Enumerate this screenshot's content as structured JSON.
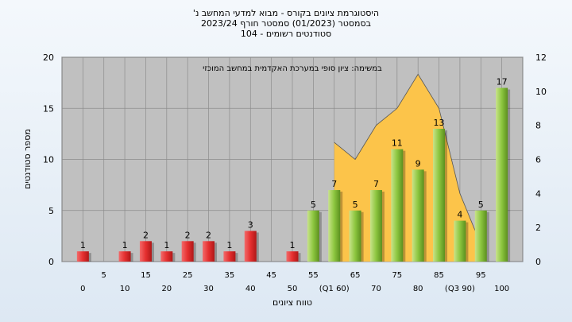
{
  "title": {
    "line1": "היסטוגרמת ציונים בקורס - מבוא למדעי המחשב נ'",
    "line2": "בסמסטר (01/2023) סמסטר חורף 2023/24",
    "line3": "סטודנטים רשומים - 104"
  },
  "chart_data": {
    "type": "bar",
    "inner_title": "במשימה: ציון סופי במערכת האקדמית במחשב המוכזי",
    "xlabel": "טווח ציונים",
    "ylabel": "מספר סטודנטים",
    "ylim": [
      0,
      20
    ],
    "y2lim": [
      0,
      12
    ],
    "y_ticks": [
      0,
      5,
      10,
      15,
      20
    ],
    "y2_ticks": [
      0,
      2,
      4,
      6,
      8,
      10,
      12
    ],
    "grid": true,
    "categories_lower": [
      "0",
      "10",
      "20",
      "30",
      "40",
      "50",
      "(Q1 60)",
      "70",
      "80",
      "(Q3 90)",
      "100"
    ],
    "categories_upper": [
      "5",
      "15",
      "25",
      "35",
      "45",
      "55",
      "65",
      "75",
      "85",
      "95"
    ],
    "bars": [
      {
        "x": 0,
        "value": 1,
        "label": "1",
        "color": "#e83a3a"
      },
      {
        "x": 10,
        "value": 1,
        "label": "1",
        "color": "#e83a3a"
      },
      {
        "x": 15,
        "value": 2,
        "label": "2",
        "color": "#e83a3a"
      },
      {
        "x": 20,
        "value": 1,
        "label": "1",
        "color": "#e83a3a"
      },
      {
        "x": 25,
        "value": 2,
        "label": "2",
        "color": "#e83a3a"
      },
      {
        "x": 30,
        "value": 2,
        "label": "2",
        "color": "#e83a3a"
      },
      {
        "x": 35,
        "value": 1,
        "label": "1",
        "color": "#e83a3a"
      },
      {
        "x": 40,
        "value": 3,
        "label": "3",
        "color": "#e83a3a"
      },
      {
        "x": 50,
        "value": 1,
        "label": "1",
        "color": "#e83a3a"
      },
      {
        "x": 55,
        "value": 5,
        "label": "5",
        "color": "#8cc63f"
      },
      {
        "x": 60,
        "value": 7,
        "label": "7",
        "color": "#8cc63f"
      },
      {
        "x": 65,
        "value": 5,
        "label": "5",
        "color": "#8cc63f"
      },
      {
        "x": 70,
        "value": 7,
        "label": "7",
        "color": "#8cc63f"
      },
      {
        "x": 75,
        "value": 11,
        "label": "11",
        "color": "#8cc63f"
      },
      {
        "x": 80,
        "value": 9,
        "label": "9",
        "color": "#8cc63f"
      },
      {
        "x": 85,
        "value": 13,
        "label": "13",
        "color": "#8cc63f"
      },
      {
        "x": 90,
        "value": 4,
        "label": "4",
        "color": "#8cc63f"
      },
      {
        "x": 95,
        "value": 5,
        "label": "5",
        "color": "#8cc63f"
      },
      {
        "x": 100,
        "value": 17,
        "label": "17",
        "color": "#8cc63f"
      }
    ],
    "area_series": {
      "axis": "right",
      "color": "#fcc44a",
      "points": [
        {
          "x": 60,
          "y": 7
        },
        {
          "x": 65,
          "y": 6
        },
        {
          "x": 70,
          "y": 8
        },
        {
          "x": 75,
          "y": 9
        },
        {
          "x": 80,
          "y": 11
        },
        {
          "x": 85,
          "y": 9
        },
        {
          "x": 90,
          "y": 4
        },
        {
          "x": 95,
          "y": 1
        }
      ]
    },
    "colors": {
      "plot_bg": "#c0c0c0",
      "grid": "#8c8c8c",
      "fail_bar": "#e83a3a",
      "pass_bar": "#8cc63f",
      "area": "#fcc44a"
    }
  }
}
